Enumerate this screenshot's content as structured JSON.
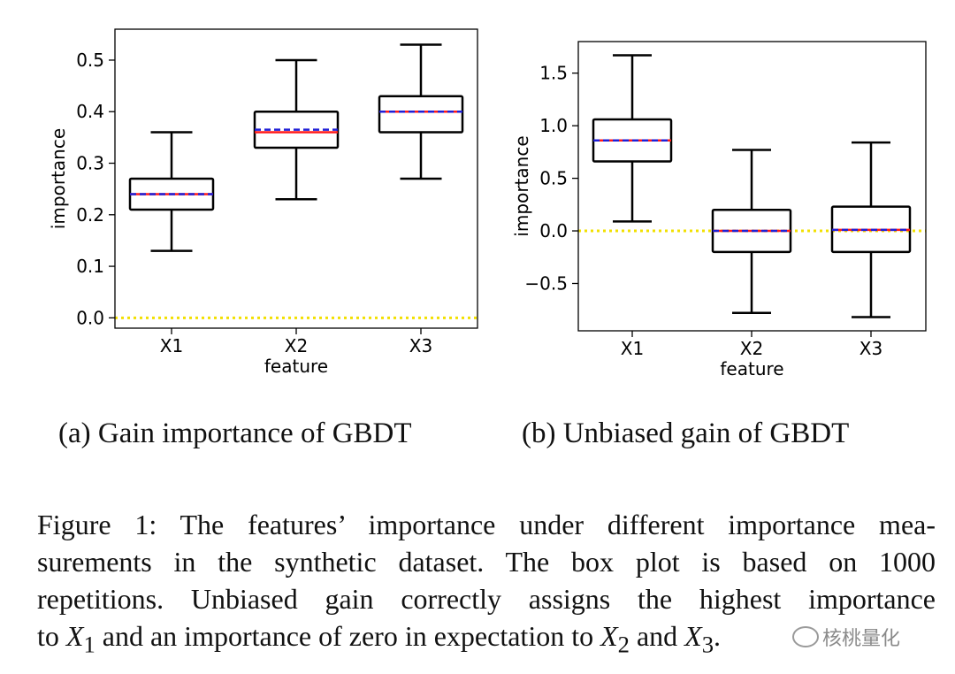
{
  "chart_data": [
    {
      "type": "box",
      "categories": [
        "X1",
        "X2",
        "X3"
      ],
      "xlabel": "feature",
      "ylabel": "importance",
      "ylim": [
        -0.02,
        0.56
      ],
      "yticks": [
        0.0,
        0.1,
        0.2,
        0.3,
        0.4,
        0.5
      ],
      "ytick_labels": [
        "0.0",
        "0.1",
        "0.2",
        "0.3",
        "0.4",
        "0.5"
      ],
      "reference_line": 0.0,
      "boxes": [
        {
          "whisker_low": 0.13,
          "q1": 0.21,
          "median": 0.24,
          "mean": 0.24,
          "q3": 0.27,
          "whisker_high": 0.36
        },
        {
          "whisker_low": 0.23,
          "q1": 0.33,
          "median": 0.36,
          "mean": 0.365,
          "q3": 0.4,
          "whisker_high": 0.5
        },
        {
          "whisker_low": 0.27,
          "q1": 0.36,
          "median": 0.4,
          "mean": 0.4,
          "q3": 0.43,
          "whisker_high": 0.53
        }
      ]
    },
    {
      "type": "box",
      "categories": [
        "X1",
        "X2",
        "X3"
      ],
      "xlabel": "feature",
      "ylabel": "importance",
      "ylim": [
        -0.95,
        1.8
      ],
      "yticks": [
        -0.5,
        0.0,
        0.5,
        1.0,
        1.5
      ],
      "ytick_labels": [
        "−0.5",
        "0.0",
        "0.5",
        "1.0",
        "1.5"
      ],
      "reference_line": 0.0,
      "boxes": [
        {
          "whisker_low": 0.09,
          "q1": 0.66,
          "median": 0.86,
          "mean": 0.86,
          "q3": 1.06,
          "whisker_high": 1.67
        },
        {
          "whisker_low": -0.78,
          "q1": -0.2,
          "median": 0.0,
          "mean": 0.0,
          "q3": 0.2,
          "whisker_high": 0.77
        },
        {
          "whisker_low": -0.82,
          "q1": -0.2,
          "median": 0.01,
          "mean": 0.01,
          "q3": 0.23,
          "whisker_high": 0.84
        }
      ]
    }
  ],
  "colors": {
    "median": "#ff1a1a",
    "mean": "#1f1fd6",
    "zero_line": "#f2e000",
    "box": "#000000"
  },
  "subcaptions": [
    "(a) Gain importance of GBDT",
    "(b) Unbiased gain of GBDT"
  ],
  "caption": {
    "line1": "Figure 1: The features’ importance under different importance mea-",
    "line2": "surements in the synthetic dataset.  The box plot is based on 1000",
    "line3": "repetitions. Unbiased gain correctly assigns the highest importance",
    "line4_start": "to",
    "var_x": "X",
    "sub_1": "1",
    "line4_mid": "and an importance of zero in expectation to",
    "sub_2": "2",
    "line4_and": "and",
    "sub_3": "3",
    "line4_end": "."
  },
  "watermark": "核桃量化"
}
